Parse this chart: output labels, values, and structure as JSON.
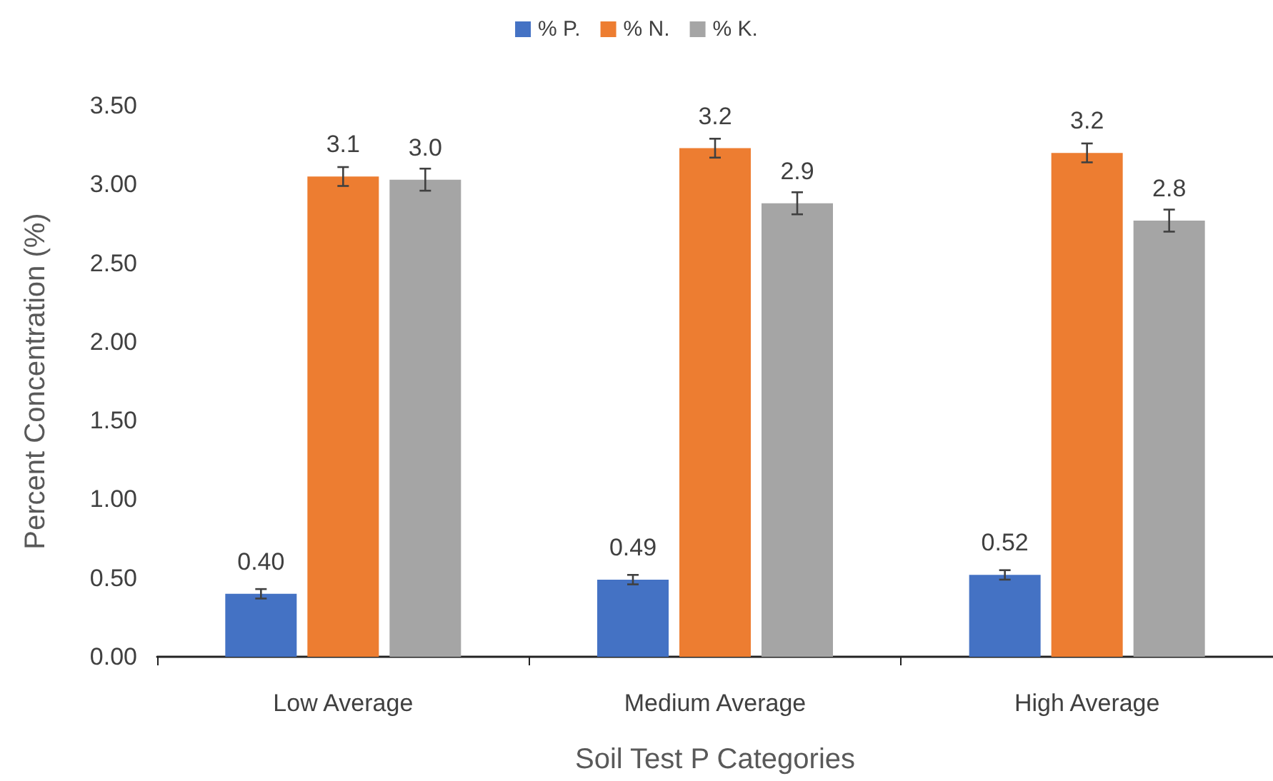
{
  "chart_data": {
    "type": "bar",
    "xlabel": "Soil Test P Categories",
    "ylabel": "Percent Concentration (%)",
    "categories": [
      "Low Average",
      "Medium Average",
      "High Average"
    ],
    "series": [
      {
        "name": "% P.",
        "color": "#4472c4",
        "values": [
          0.4,
          0.49,
          0.52
        ],
        "errors": [
          0.03,
          0.03,
          0.03
        ],
        "value_labels": [
          "0.40",
          "0.49",
          "0.52"
        ]
      },
      {
        "name": "% N.",
        "color": "#ed7d31",
        "values": [
          3.05,
          3.23,
          3.2
        ],
        "errors": [
          0.06,
          0.06,
          0.06
        ],
        "value_labels": [
          "3.1",
          "3.2",
          "3.2"
        ]
      },
      {
        "name": "% K.",
        "color": "#a5a5a5",
        "values": [
          3.03,
          2.88,
          2.77
        ],
        "errors": [
          0.07,
          0.07,
          0.07
        ],
        "value_labels": [
          "3.0",
          "2.9",
          "2.8"
        ]
      }
    ],
    "ylim": [
      0,
      3.5
    ],
    "yticks": [
      {
        "value": 0,
        "label": "0.00"
      },
      {
        "value": 0.5,
        "label": "0.50"
      },
      {
        "value": 1,
        "label": "1.00"
      },
      {
        "value": 1.5,
        "label": "1.50"
      },
      {
        "value": 2,
        "label": "2.00"
      },
      {
        "value": 2.5,
        "label": "2.50"
      },
      {
        "value": 3,
        "label": "3.00"
      },
      {
        "value": 3.5,
        "label": "3.50"
      }
    ],
    "grid": false,
    "legend": "top"
  }
}
